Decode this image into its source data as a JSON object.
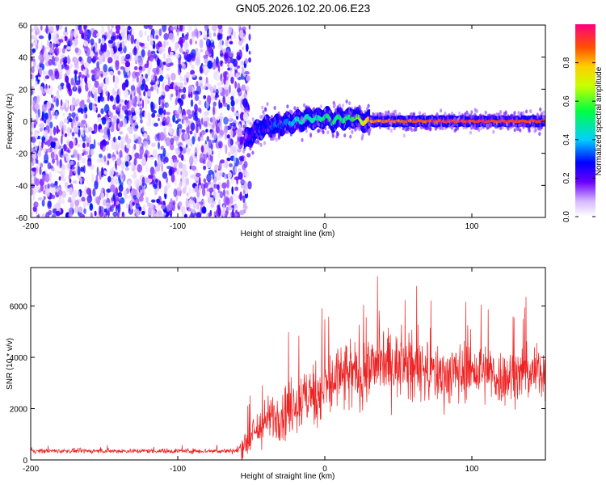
{
  "title": "GN05.2026.102.20.06.E23",
  "chart_data": [
    {
      "type": "heatmap",
      "xlabel": "Height of straight line (km)",
      "ylabel": "Frequency (Hz)",
      "xlim": [
        -200,
        150
      ],
      "ylim": [
        -60,
        60
      ],
      "xticks": [
        -200,
        -100,
        0,
        100
      ],
      "yticks": [
        60,
        40,
        20,
        0,
        -20,
        -40,
        -60
      ],
      "colorbar_label": "Normalized spectral amplitude",
      "colorbar_range": [
        0,
        1
      ],
      "colorbar_ticks": [
        0.0,
        0.2,
        0.4,
        0.6,
        0.8
      ],
      "noise_region_x": [
        -200,
        -55
      ],
      "signal_trace": {
        "x": [
          -55,
          -50,
          -45,
          -40,
          -35,
          -30,
          -25,
          -20,
          -15,
          -10,
          -5,
          0,
          5,
          10,
          15,
          20,
          25,
          30,
          40,
          50,
          60,
          70,
          80,
          90,
          100,
          110,
          120,
          130,
          140,
          150
        ],
        "y": [
          -12,
          -8,
          -5,
          -3,
          -3,
          -2,
          -1,
          0,
          1,
          2,
          1,
          3,
          0,
          2,
          1,
          3,
          0,
          0,
          0,
          0,
          0,
          0,
          0,
          0,
          0,
          0,
          0,
          0,
          0,
          0
        ],
        "amplitude": [
          0.2,
          0.25,
          0.3,
          0.3,
          0.35,
          0.35,
          0.4,
          0.45,
          0.5,
          0.5,
          0.5,
          0.55,
          0.55,
          0.55,
          0.55,
          0.6,
          0.7,
          0.85,
          0.9,
          0.9,
          0.92,
          0.92,
          0.95,
          0.95,
          0.95,
          0.95,
          0.95,
          0.95,
          0.95,
          0.95
        ]
      }
    },
    {
      "type": "line",
      "xlabel": "Height of straight line (km)",
      "ylabel": "SNR (10 * v/v)",
      "xlim": [
        -200,
        150
      ],
      "ylim": [
        0,
        7500
      ],
      "xticks": [
        -200,
        -100,
        0,
        100
      ],
      "yticks": [
        0,
        2000,
        4000,
        6000
      ],
      "color": "#ee2222",
      "envelope": {
        "x": [
          -200,
          -150,
          -100,
          -60,
          -55,
          -40,
          -20,
          0,
          10,
          20,
          40,
          60,
          80,
          100,
          120,
          140,
          150
        ],
        "mean": [
          350,
          350,
          350,
          350,
          600,
          1500,
          2200,
          2800,
          3200,
          3300,
          3800,
          3600,
          3300,
          3500,
          3200,
          3400,
          3500
        ],
        "spread": [
          120,
          120,
          130,
          130,
          800,
          1200,
          1600,
          1800,
          2000,
          2000,
          1700,
          1700,
          1600,
          1600,
          1500,
          1400,
          1400
        ]
      }
    }
  ]
}
